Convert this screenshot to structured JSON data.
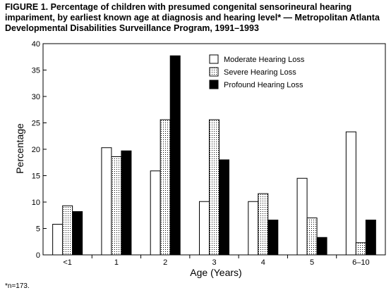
{
  "title": "FIGURE 1. Percentage of children with presumed congenital sensorineural hearing impariment, by earliest known age at diagnosis and hearing level* — Metropolitan Atlanta Developmental Disabilities Surveillance Program, 1991–1993",
  "footnote": "*n=173.",
  "chart_data": {
    "type": "bar",
    "categories": [
      "<1",
      "1",
      "2",
      "3",
      "4",
      "5",
      "6–10"
    ],
    "series": [
      {
        "name": "Moderate Hearing Loss",
        "values": [
          5.8,
          20.3,
          15.9,
          10.1,
          10.1,
          14.5,
          23.3
        ],
        "fill": "white"
      },
      {
        "name": "Severe Hearing Loss",
        "values": [
          9.3,
          18.6,
          25.6,
          25.6,
          11.6,
          7.0,
          2.3
        ],
        "fill": "dotted"
      },
      {
        "name": "Profound Hearing Loss",
        "values": [
          8.2,
          19.7,
          37.7,
          18.0,
          6.6,
          3.3,
          6.6
        ],
        "fill": "black"
      }
    ],
    "xlabel": "Age (Years)",
    "ylabel": "Percentage",
    "ylim": [
      0,
      40
    ],
    "yticks": [
      0,
      5,
      10,
      15,
      20,
      25,
      30,
      35,
      40
    ],
    "grid": false,
    "legend": "top-right"
  }
}
